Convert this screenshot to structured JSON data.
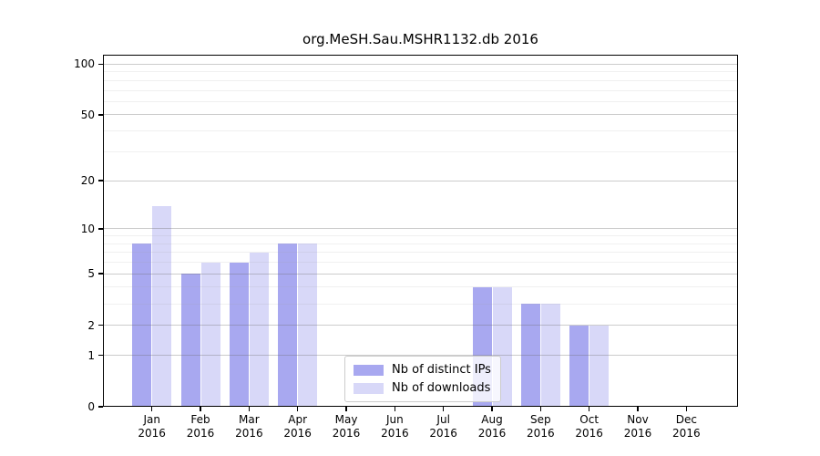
{
  "chart_data": {
    "type": "bar",
    "title": "org.MeSH.Sau.MSHR1132.db 2016",
    "categories": [
      "Jan",
      "Feb",
      "Mar",
      "Apr",
      "May",
      "Jun",
      "Jul",
      "Aug",
      "Sep",
      "Oct",
      "Nov",
      "Dec"
    ],
    "x_tick_year": "2016",
    "series": [
      {
        "name": "Nb of distinct IPs",
        "color": "#a8a8f0",
        "values": [
          8,
          5,
          6,
          8,
          0,
          0,
          0,
          4,
          3,
          2,
          0,
          0
        ]
      },
      {
        "name": "Nb of downloads",
        "color": "#d8d8f8",
        "values": [
          14,
          6,
          7,
          8,
          0,
          0,
          0,
          4,
          3,
          2,
          0,
          0
        ]
      }
    ],
    "y_axis": {
      "scale": "log1p",
      "major_ticks": [
        0,
        1,
        2,
        5,
        10,
        20,
        50,
        100
      ],
      "minor_gridlines": [
        3,
        4,
        6,
        7,
        8,
        9,
        30,
        40,
        60,
        70,
        80,
        90
      ],
      "range": [
        0,
        114
      ]
    },
    "grid": true,
    "legend": {
      "position": "lower-center",
      "entries": [
        "Nb of distinct IPs",
        "Nb of downloads"
      ]
    },
    "colors": {
      "background": "#ffffff",
      "spine": "#000000",
      "major_grid": "#d4d4d4",
      "minor_grid": "#f0f0f0"
    }
  }
}
